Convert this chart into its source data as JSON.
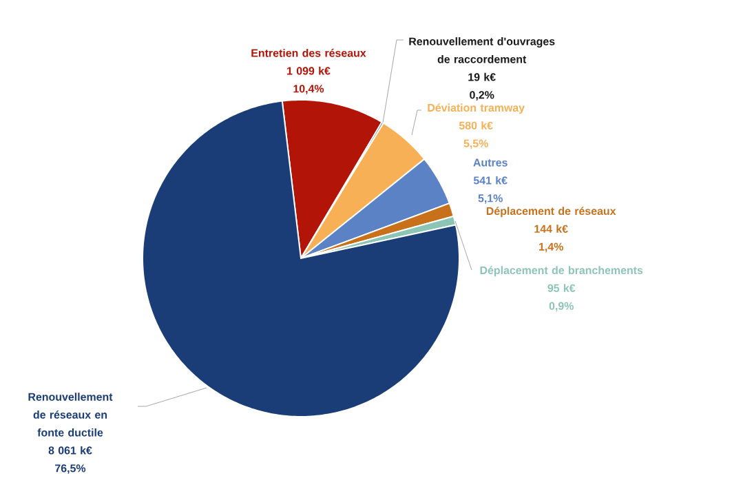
{
  "chart_data": {
    "type": "pie",
    "categories": [
      "Entretien des réseaux",
      "Renouvellement d'ouvrages de raccordement",
      "Déviation tramway",
      "Autres",
      "Déplacement de réseaux",
      "Déplacement de branchements",
      "Renouvellement de réseaux en fonte ductile"
    ],
    "values": [
      1099,
      19,
      580,
      541,
      144,
      95,
      8061
    ],
    "colors": [
      "#b31408",
      "#1a1a1a",
      "#f7b055",
      "#5b82c4",
      "#c8711a",
      "#8cc5b5",
      "#1a3d78"
    ],
    "value_labels": [
      "1 099 k€",
      "19 k€",
      "580 k€",
      "541 k€",
      "144 k€",
      "95 k€",
      "8 061 k€"
    ],
    "annotations": [
      "10,4%",
      "0,2%",
      "5,5%",
      "5,1%",
      "1,4%",
      "0,9%",
      "76,5%"
    ]
  }
}
